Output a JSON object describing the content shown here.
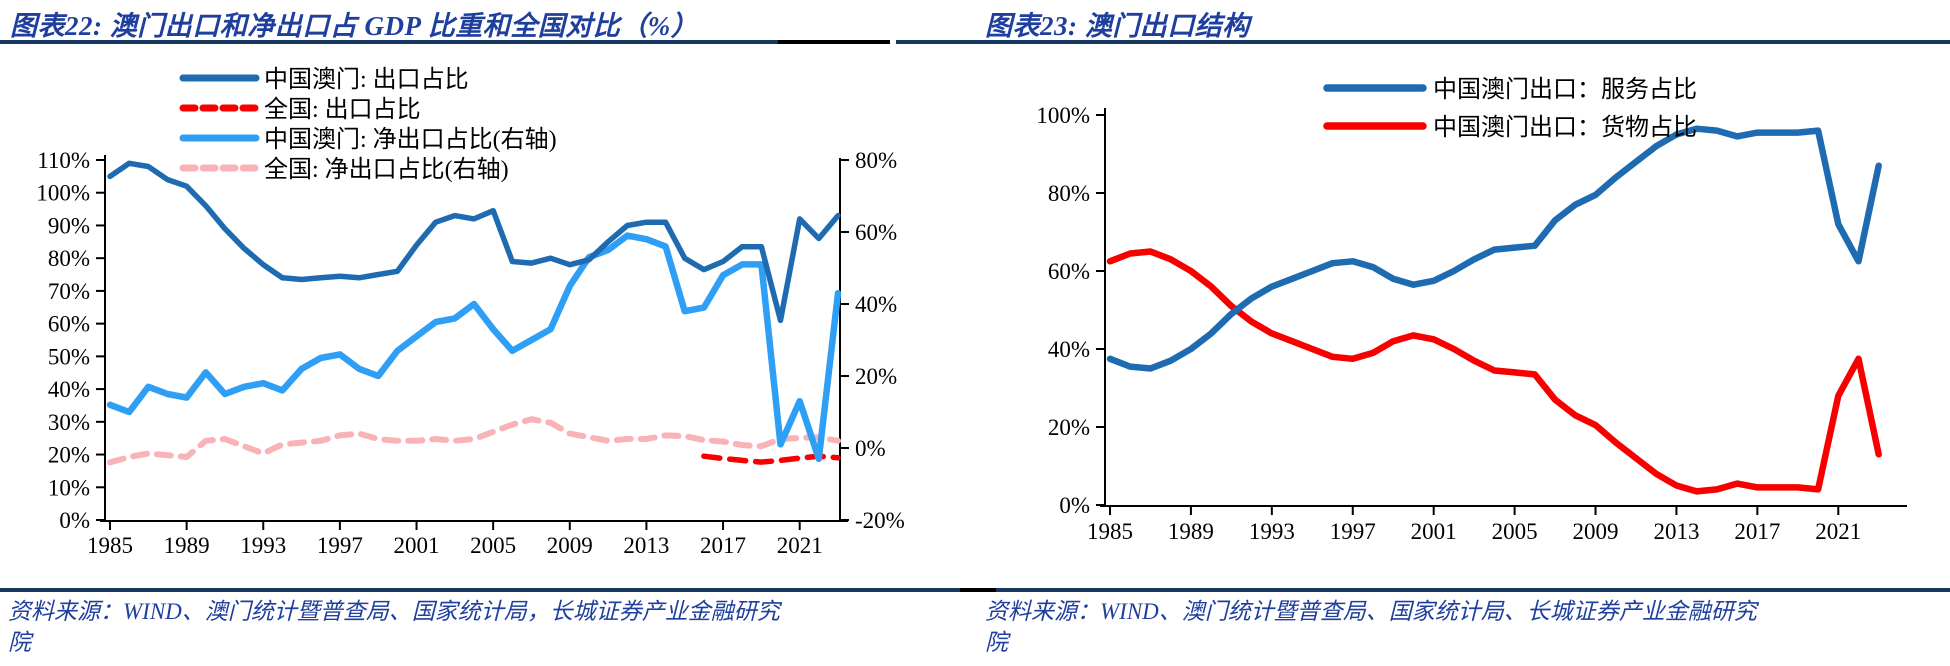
{
  "figures": [
    {
      "id": "figure-22",
      "title": "图表22:  澳门出口和净出口占 GDP 比重和全国对比（%）",
      "source": "资料来源：WIND、澳门统计暨普查局、国家统计局，长城证券产业金融研究院"
    },
    {
      "id": "figure-23",
      "title": "图表23:  澳门出口结构",
      "source": "资料来源：WIND、澳门统计暨普查局、国家统计局、长城证券产业金融研究院"
    }
  ],
  "colors": {
    "title_navy": "#1F3F9E",
    "rule_navy": "#17375E",
    "rule_black": "#000000",
    "macau_dark_blue": "#1F6BB2",
    "national_red": "#F80000",
    "macau_light_blue": "#2F9FF5",
    "national_pink": "#F9B3B6"
  },
  "chart_data": [
    {
      "type": "line",
      "title": "澳门出口和净出口占 GDP 比重和全国对比（%）",
      "year_start": 1985,
      "year_end": 2023,
      "x_ticks": [
        "1985",
        "1989",
        "1993",
        "1997",
        "2001",
        "2005",
        "2009",
        "2013",
        "2017",
        "2021"
      ],
      "left_axis": {
        "min": 0,
        "max": 110,
        "unit": "%",
        "ticks": [
          "0%",
          "10%",
          "20%",
          "30%",
          "40%",
          "50%",
          "60%",
          "70%",
          "80%",
          "90%",
          "100%",
          "110%"
        ]
      },
      "right_axis": {
        "min": -20,
        "max": 80,
        "unit": "%",
        "ticks": [
          "-20%",
          "0%",
          "20%",
          "40%",
          "60%",
          "80%"
        ]
      },
      "legend_position": "top-left",
      "grid": false,
      "series": [
        {
          "key": "macau-export-share",
          "name": "中国澳门: 出口占比",
          "axis": "left",
          "color": "#1F6BB2",
          "style": "solid",
          "year_start": 1985,
          "values": [
            105,
            109,
            108,
            104,
            102,
            96,
            89,
            83,
            78,
            74,
            73.5,
            74,
            74.5,
            74,
            75,
            76,
            84,
            91,
            93,
            92,
            94.5,
            79,
            78.5,
            80,
            78,
            79.5,
            85,
            90,
            91,
            91,
            80,
            76.5,
            79,
            83.5,
            83.5,
            61,
            92,
            86,
            93
          ]
        },
        {
          "key": "national-export-share",
          "name": "全国: 出口占比",
          "axis": "left",
          "color": "#F80000",
          "style": "dashed",
          "year_start": 2016,
          "values": [
            19.5,
            18.8,
            18.2,
            17.7,
            18.2,
            18.9,
            19.5,
            19.0
          ]
        },
        {
          "key": "macau-net-export-share",
          "name": "中国澳门: 净出口占比(右轴)",
          "axis": "right",
          "color": "#2F9FF5",
          "style": "solid",
          "year_start": 1985,
          "values": [
            12,
            10,
            17,
            15,
            14,
            21,
            15,
            17,
            18,
            16,
            22,
            25,
            26,
            22,
            20,
            27,
            31,
            35,
            36,
            40,
            33,
            27,
            30,
            33,
            45,
            53,
            55,
            59,
            58,
            56,
            38,
            39,
            48,
            51,
            51,
            1,
            13,
            -3,
            43
          ]
        },
        {
          "key": "national-net-export-share",
          "name": "全国: 净出口占比(右轴)",
          "axis": "right",
          "color": "#F9B3B6",
          "style": "dashed",
          "year_start": 1985,
          "values": [
            -4,
            -2.5,
            -1.5,
            -2,
            -2.5,
            2,
            2.5,
            0.5,
            -1.5,
            1,
            1.5,
            2,
            3.5,
            4,
            2.5,
            2,
            2,
            2.5,
            2,
            2.5,
            4.5,
            6.5,
            8,
            7,
            4,
            3,
            2,
            2.5,
            2.5,
            3.5,
            3.3,
            2.2,
            1.8,
            0.8,
            0.5,
            2.5,
            2.8,
            3,
            2
          ]
        }
      ]
    },
    {
      "type": "line",
      "title": "澳门出口结构",
      "year_start": 1985,
      "year_end": 2023,
      "x_ticks": [
        "1985",
        "1989",
        "1993",
        "1997",
        "2001",
        "2005",
        "2009",
        "2013",
        "2017",
        "2021"
      ],
      "y_axis": {
        "min": 0,
        "max": 100,
        "unit": "%",
        "ticks": [
          "0%",
          "20%",
          "40%",
          "60%",
          "80%",
          "100%"
        ]
      },
      "legend_position": "top-center",
      "grid": false,
      "series": [
        {
          "key": "macau-services-export-share",
          "name": "中国澳门出口：服务占比",
          "color": "#1F6BB2",
          "style": "solid",
          "year_start": 1985,
          "values": [
            37.5,
            35.5,
            35,
            37,
            40,
            44,
            49,
            53,
            56,
            58,
            60,
            62,
            62.5,
            61,
            58,
            56.5,
            57.5,
            60,
            63,
            65.5,
            66,
            66.5,
            73,
            77,
            79.5,
            84,
            88,
            92,
            95,
            96.5,
            96,
            94.5,
            95.5,
            95.5,
            95.5,
            96,
            72,
            62.5,
            87
          ]
        },
        {
          "key": "macau-goods-export-share",
          "name": "中国澳门出口：货物占比",
          "color": "#F80000",
          "style": "solid",
          "year_start": 1985,
          "values": [
            62.5,
            64.5,
            65,
            63,
            60,
            56,
            51,
            47,
            44,
            42,
            40,
            38,
            37.5,
            39,
            42,
            43.5,
            42.5,
            40,
            37,
            34.5,
            34,
            33.5,
            27,
            23,
            20.5,
            16,
            12,
            8,
            5,
            3.5,
            4,
            5.5,
            4.5,
            4.5,
            4.5,
            4,
            28,
            37.5,
            13
          ]
        }
      ]
    }
  ]
}
